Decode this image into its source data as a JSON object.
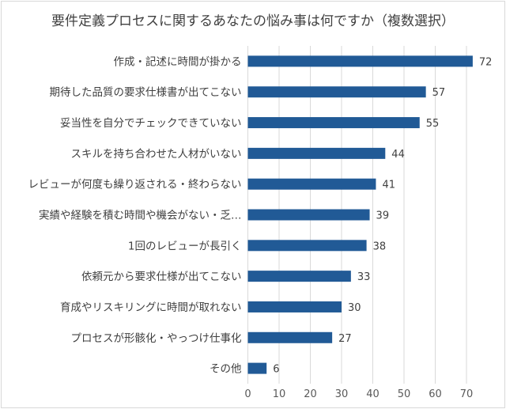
{
  "chart_data": {
    "type": "bar",
    "orientation": "horizontal",
    "title": "要件定義プロセスに関するあなたの悩み事は何ですか（複数選択）",
    "categories": [
      "作成・記述に時間が掛かる",
      "期待した品質の要求仕様書が出てこない",
      "妥当性を自分でチェックできていない",
      "スキルを持ち合わせた人材がいない",
      "レビューが何度も繰り返される・終わらない",
      "実績や経験を積む時間や機会がない・乏…",
      "1回のレビューが長引く",
      "依頼元から要求仕様が出てこない",
      "育成やリスキリングに時間が取れない",
      "プロセスが形骸化・やっつけ仕事化",
      "その他"
    ],
    "values": [
      72,
      57,
      55,
      44,
      41,
      39,
      38,
      33,
      30,
      27,
      6
    ],
    "xlim": [
      0,
      70
    ],
    "x_ticks": [
      "0",
      "10",
      "20",
      "30",
      "40",
      "50",
      "60",
      "70"
    ],
    "grid": true,
    "data_labels": true,
    "legend": "none",
    "bar_color": "#215a96",
    "xlabel": "",
    "ylabel": ""
  }
}
